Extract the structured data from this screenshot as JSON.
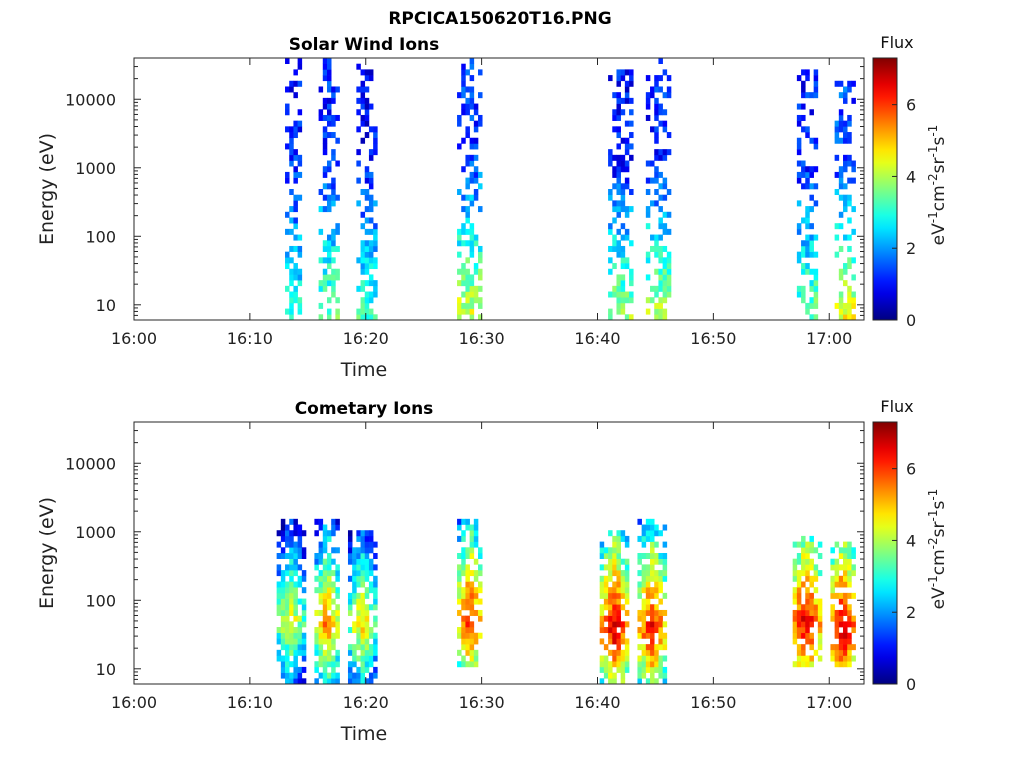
{
  "figure": {
    "title": "RPCICA150620T16.PNG"
  },
  "chart_data": [
    {
      "type": "heatmap",
      "title": "Solar Wind Ions",
      "xlabel": "Time",
      "ylabel": "Energy (eV)",
      "x_ticks": [
        "16:00",
        "16:10",
        "16:20",
        "16:30",
        "16:40",
        "16:50",
        "17:00"
      ],
      "xlim": [
        "16:00",
        "17:03"
      ],
      "y_scale": "log",
      "y_ticks": [
        "10",
        "100",
        "1000",
        "10000"
      ],
      "ylim": [
        6,
        40000
      ],
      "colorbar": {
        "label": "Flux",
        "units_base": [
          "eV",
          "cm",
          "sr",
          "s"
        ],
        "units_exp": [
          "-1",
          "-2",
          "-1",
          "-1"
        ],
        "ticks": [
          "0",
          "2",
          "4",
          "6"
        ],
        "range": [
          0,
          7.3
        ],
        "colormap": "jet"
      },
      "bursts": [
        {
          "t": "16:13:45",
          "width_min": 1.4,
          "e_low": 6,
          "e_high": 40000,
          "flux_high_e": 1.1,
          "flux_low_e": 3.0
        },
        {
          "t": "16:16:50",
          "width_min": 1.6,
          "e_low": 6,
          "e_high": 40000,
          "flux_high_e": 1.2,
          "flux_low_e": 3.6
        },
        {
          "t": "16:20:00",
          "width_min": 1.8,
          "e_low": 6,
          "e_high": 35000,
          "flux_high_e": 1.0,
          "flux_low_e": 3.2
        },
        {
          "t": "16:28:50",
          "width_min": 2.2,
          "e_low": 6,
          "e_high": 40000,
          "flux_high_e": 1.3,
          "flux_low_e": 4.3
        },
        {
          "t": "16:42:00",
          "width_min": 2.4,
          "e_low": 6,
          "e_high": 30000,
          "flux_high_e": 1.0,
          "flux_low_e": 3.9
        },
        {
          "t": "16:45:20",
          "width_min": 2.0,
          "e_low": 6,
          "e_high": 40000,
          "flux_high_e": 1.1,
          "flux_low_e": 4.1
        },
        {
          "t": "16:58:10",
          "width_min": 2.0,
          "e_low": 6,
          "e_high": 30000,
          "flux_high_e": 1.1,
          "flux_low_e": 3.6
        },
        {
          "t": "17:01:20",
          "width_min": 2.0,
          "e_low": 6,
          "e_high": 20000,
          "flux_high_e": 1.4,
          "flux_low_e": 4.5
        }
      ]
    },
    {
      "type": "heatmap",
      "title": "Cometary Ions",
      "xlabel": "Time",
      "ylabel": "Energy (eV)",
      "x_ticks": [
        "16:00",
        "16:10",
        "16:20",
        "16:30",
        "16:40",
        "16:50",
        "17:00"
      ],
      "xlim": [
        "16:00",
        "17:03"
      ],
      "y_scale": "log",
      "y_ticks": [
        "10",
        "100",
        "1000",
        "10000"
      ],
      "ylim": [
        6,
        40000
      ],
      "colorbar": {
        "label": "Flux",
        "units_base": [
          "eV",
          "cm",
          "sr",
          "s"
        ],
        "units_exp": [
          "-1",
          "-2",
          "-1",
          "-1"
        ],
        "ticks": [
          "0",
          "2",
          "4",
          "6"
        ],
        "range": [
          0,
          7.3
        ],
        "colormap": "jet"
      },
      "bursts": [
        {
          "t": "16:13:30",
          "width_min": 2.6,
          "e_low": 6,
          "e_high": 1500,
          "peak_e": 50,
          "peak_flux": 4.8
        },
        {
          "t": "16:16:40",
          "width_min": 2.4,
          "e_low": 6,
          "e_high": 1500,
          "peak_e": 45,
          "peak_flux": 5.6
        },
        {
          "t": "16:19:40",
          "width_min": 2.6,
          "e_low": 6,
          "e_high": 1000,
          "peak_e": 45,
          "peak_flux": 5.0
        },
        {
          "t": "16:29:00",
          "width_min": 2.4,
          "e_low": 10,
          "e_high": 1500,
          "peak_e": 50,
          "peak_flux": 6.4
        },
        {
          "t": "16:41:30",
          "width_min": 2.6,
          "e_low": 6,
          "e_high": 1000,
          "peak_e": 40,
          "peak_flux": 6.8
        },
        {
          "t": "16:44:40",
          "width_min": 2.6,
          "e_low": 6,
          "e_high": 1500,
          "peak_e": 40,
          "peak_flux": 6.5
        },
        {
          "t": "16:58:00",
          "width_min": 2.6,
          "e_low": 10,
          "e_high": 800,
          "peak_e": 45,
          "peak_flux": 6.8
        },
        {
          "t": "17:01:10",
          "width_min": 2.4,
          "e_low": 10,
          "e_high": 700,
          "peak_e": 35,
          "peak_flux": 7.0
        }
      ]
    }
  ]
}
